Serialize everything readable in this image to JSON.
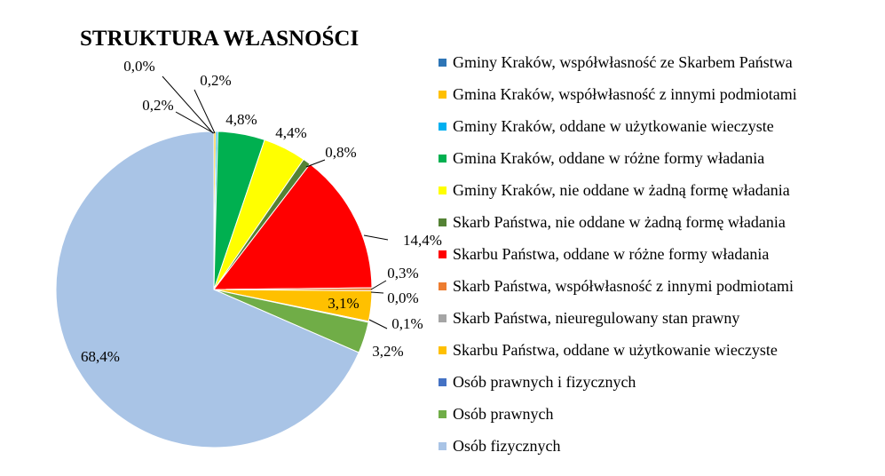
{
  "chart_data": {
    "type": "pie",
    "title": "STRUKTURA WŁASNOŚCI",
    "legend_position": "right",
    "slices": [
      {
        "label": "Gminy Kraków, współwłasność ze Skarbem Państwa",
        "value": 0.0,
        "display": "0,0%",
        "color": "#2E75B6"
      },
      {
        "label": "Gmina Kraków, współwłasność z innymi podmiotami",
        "value": 0.2,
        "display": "0,2%",
        "color": "#FFC000"
      },
      {
        "label": "Gminy Kraków, oddane w  użytkowanie wieczyste",
        "value": 0.2,
        "display": "0,2%",
        "color": "#00B0F0"
      },
      {
        "label": "Gmina Kraków, oddane w różne formy władania",
        "value": 4.8,
        "display": "4,8%",
        "color": "#00B050"
      },
      {
        "label": "Gminy Kraków, nie oddane w żadną formę władania",
        "value": 4.4,
        "display": "4,4%",
        "color": "#FFFF00"
      },
      {
        "label": "Skarb Państwa, nie oddane w żadną formę władania",
        "value": 0.8,
        "display": "0,8%",
        "color": "#548235"
      },
      {
        "label": "Skarbu Państwa, oddane w różne formy władania",
        "value": 14.4,
        "display": "14,4%",
        "color": "#FF0000"
      },
      {
        "label": "Skarb Państwa, współwłasność z innymi podmiotami",
        "value": 0.3,
        "display": "0,3%",
        "color": "#ED7D31"
      },
      {
        "label": "Skarb Państwa, nieuregulowany stan prawny",
        "value": 0.0,
        "display": "0,0%",
        "color": "#A5A5A5"
      },
      {
        "label": "Skarbu Państwa, oddane w użytkowanie wieczyste",
        "value": 3.1,
        "display": "3,1%",
        "color": "#FFC000"
      },
      {
        "label": "Osób prawnych i fizycznych",
        "value": 0.1,
        "display": "0,1%",
        "color": "#4472C4"
      },
      {
        "label": "Osób prawnych",
        "value": 3.2,
        "display": "3,2%",
        "color": "#70AD47"
      },
      {
        "label": "Osób fizycznych",
        "value": 68.4,
        "display": "68,4%",
        "color": "#A9C4E6"
      }
    ]
  }
}
